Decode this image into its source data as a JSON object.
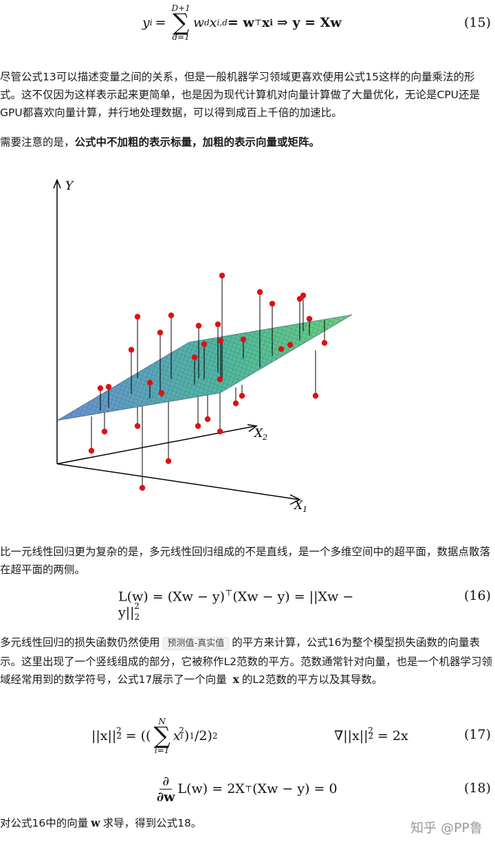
{
  "equations": {
    "eq15": {
      "lhs": "y",
      "lhs_sub": "i",
      "sum_top": "D+1",
      "sum_bot": "d=1",
      "body_w": "w",
      "body_w_sub": "d",
      "body_x": "x",
      "body_x_sub": "i,d",
      "rhs1": " = w",
      "rhs1_sup": "⊤",
      "rhs1_x": "x",
      "rhs1_x_sub": "i",
      "rhs2": "⇒ y = Xw",
      "number": "(15)"
    },
    "eq16": {
      "text": "L(w) = (Xw − y)",
      "sup1": "⊤",
      "mid": "(Xw − y) = ||Xw − y||",
      "sub": "2",
      "sup2": "2",
      "number": "(16)"
    },
    "eq17": {
      "left_a": "||x||",
      "left_sub": "2",
      "left_sup": "2",
      "left_b": " = ((",
      "sum_top": "N",
      "sum_bot": "i=1",
      "term": "x",
      "term_sub": "i",
      "term_sup": "2",
      "left_c": ")",
      "left_c_sup": "1",
      "left_d": "/2)",
      "left_d_sup": "2",
      "right_a": "∇||x||",
      "right_sub": "2",
      "right_sup": "2",
      "right_b": " = 2x",
      "number": "(17)"
    },
    "eq18": {
      "frac_num": "∂",
      "frac_den": "∂w",
      "body": "L(w) = 2X",
      "sup": "⊤",
      "tail": "(Xw − y) = 0",
      "number": "(18)"
    }
  },
  "paragraphs": {
    "p1": "尽管公式13可以描述变量之间的关系，但是一般机器学习领域更喜欢使用公式15这样的向量乘法的形式。这不仅因为这样表示起来更简单，也是因为现代计算机对向量计算做了大量优化，无论是CPU还是GPU都喜欢向量计算，并行地处理数据，可以得到成百上千倍的加速比。",
    "p2_plain": "需要注意的是，",
    "p2_bold": "公式中不加粗的表示标量，加粗的表示向量或矩阵。",
    "p3": "比一元线性回归更为复杂的是，多元线性回归组成的不是直线，是一个多维空间中的超平面，数据点散落在超平面的两侧。",
    "p4_a": "多元线性回归的损失函数仍然使用",
    "p4_code": "预测值-真实值",
    "p4_b": "的平方来计算，公式16为整个模型损失函数的向量表示。这里出现了一个竖线组成的部分，它被称作L2范数的平方。范数通常针对向量，也是一个机器学习领域经常用到的数学符号，公式17展示了一个向量",
    "p4_x": "x",
    "p4_c": "的L2范数的平方以及其导数。",
    "p5_a": "对公式16中的向量",
    "p5_w": "w",
    "p5_b": "求导，得到公式18。"
  },
  "figure": {
    "axis_y": "Y",
    "axis_x1": "X",
    "axis_x1_sub": "1",
    "axis_x2": "X",
    "axis_x2_sub": "2",
    "point_color": "#e01010",
    "plane_color_a": "#6a8fd6",
    "plane_color_b": "#5fcf7a"
  },
  "watermark": "知乎 @PP鲁"
}
